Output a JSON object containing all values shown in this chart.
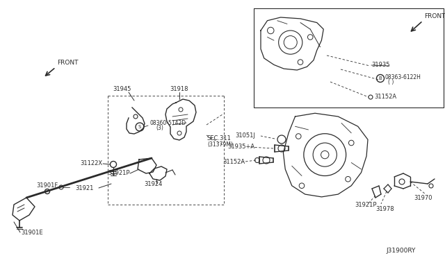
{
  "bg_color": "#ffffff",
  "lc": "#2a2a2a",
  "fig_width": 6.4,
  "fig_height": 3.72,
  "dpi": 100,
  "labels": {
    "front_main": "FRONT",
    "front_inset": "FRONT",
    "part_31918": "31918",
    "part_31945": "31945",
    "part_08360": "08360-5142D",
    "part_08360b": "(3)",
    "part_31122X": "31122X",
    "part_31921P_1": "31921P",
    "part_31924": "31924",
    "part_31921": "31921",
    "part_31901F": "31901F",
    "part_31901E": "31901E",
    "part_sec311a": "SEC.311",
    "part_sec311b": "(31379M)",
    "part_31935_top": "31935",
    "part_08363": "08363-6122H",
    "part_08363b": "( )",
    "part_31152A_top": "31152A",
    "part_31051J": "31051J",
    "part_31935A": "31935+A",
    "part_31152A_bot": "31152A",
    "part_31921P_2": "31921P",
    "part_31970": "31970",
    "part_31978": "31978",
    "diagram_code": "J31900RY"
  }
}
